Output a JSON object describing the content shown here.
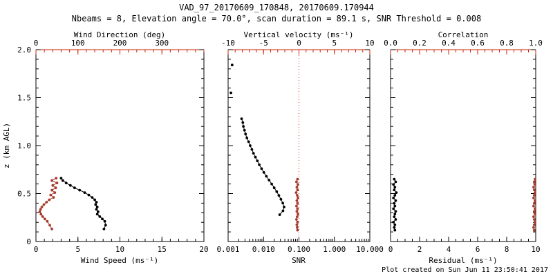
{
  "header": {
    "title": "VAD_97_20170609_170848, 20170609.170944",
    "subtitle": "Nbeams = 8, Elevation angle = 70.0°, scan duration = 89.1 s, SNR Threshold = 0.008"
  },
  "footer": {
    "created": "Plot created on Sun Jun 11 23:50:41 2017"
  },
  "colors": {
    "axis_black": "#000000",
    "axis_red": "#cc2200",
    "marker_red": "#a63a2c"
  },
  "chart_data": [
    {
      "type": "line",
      "name": "wind-profile-panel",
      "x_bottom": {
        "label": "Wind Speed (ms⁻¹)",
        "min": 0,
        "max": 20,
        "minor": 1,
        "ticks": [
          {
            "v": 0,
            "t": "0"
          },
          {
            "v": 5,
            "t": "5"
          },
          {
            "v": 10,
            "t": "10"
          },
          {
            "v": 15,
            "t": "15"
          },
          {
            "v": 20,
            "t": "20"
          }
        ]
      },
      "x_top": {
        "label": "Wind Direction (deg)",
        "min": 0,
        "max": 400,
        "minor": 20,
        "ticks": [
          {
            "v": 0,
            "t": "0"
          },
          {
            "v": 100,
            "t": "100"
          },
          {
            "v": 200,
            "t": "200"
          },
          {
            "v": 300,
            "t": "300"
          }
        ]
      },
      "y": {
        "label": "z (km AGL)",
        "min": 0,
        "max": 2.0,
        "minor": 0.1,
        "ticks": [
          {
            "v": 0,
            "t": "0"
          },
          {
            "v": 0.5,
            "t": "0.5"
          },
          {
            "v": 1.0,
            "t": "1.0"
          },
          {
            "v": 1.5,
            "t": "1.5"
          },
          {
            "v": 2.0,
            "t": "2.0"
          }
        ]
      },
      "series": [
        {
          "name": "wind_speed",
          "axis": "bottom",
          "color": "black",
          "line": true,
          "points": [
            [
              3.0,
              0.66
            ],
            [
              3.2,
              0.635
            ],
            [
              3.6,
              0.61
            ],
            [
              4.1,
              0.585
            ],
            [
              4.6,
              0.56
            ],
            [
              5.2,
              0.535
            ],
            [
              5.8,
              0.51
            ],
            [
              6.3,
              0.485
            ],
            [
              6.7,
              0.46
            ],
            [
              7.0,
              0.435
            ],
            [
              7.2,
              0.41
            ],
            [
              7.1,
              0.385
            ],
            [
              7.3,
              0.36
            ],
            [
              7.2,
              0.335
            ],
            [
              7.4,
              0.31
            ],
            [
              7.3,
              0.285
            ],
            [
              7.6,
              0.26
            ],
            [
              7.9,
              0.235
            ],
            [
              8.2,
              0.21
            ],
            [
              8.3,
              0.17
            ],
            [
              8.1,
              0.13
            ]
          ]
        },
        {
          "name": "wind_direction",
          "axis": "top",
          "color": "red",
          "line": true,
          "points": [
            [
              48,
              0.66
            ],
            [
              38,
              0.635
            ],
            [
              50,
              0.61
            ],
            [
              40,
              0.585
            ],
            [
              47,
              0.56
            ],
            [
              38,
              0.535
            ],
            [
              45,
              0.51
            ],
            [
              35,
              0.485
            ],
            [
              42,
              0.46
            ],
            [
              32,
              0.435
            ],
            [
              25,
              0.41
            ],
            [
              19,
              0.385
            ],
            [
              14,
              0.36
            ],
            [
              11,
              0.335
            ],
            [
              9,
              0.31
            ],
            [
              12,
              0.285
            ],
            [
              16,
              0.26
            ],
            [
              21,
              0.235
            ],
            [
              27,
              0.21
            ],
            [
              33,
              0.17
            ],
            [
              38,
              0.13
            ]
          ]
        }
      ]
    },
    {
      "type": "line",
      "name": "snr-vertical-velocity-panel",
      "x_bottom": {
        "label": "SNR",
        "min": 0.001,
        "max": 10,
        "log": true,
        "ticks": [
          {
            "v": 0.001,
            "t": "0.001"
          },
          {
            "v": 0.01,
            "t": "0.010"
          },
          {
            "v": 0.1,
            "t": "0.100"
          },
          {
            "v": 1,
            "t": "1.000"
          },
          {
            "v": 10,
            "t": "10.000"
          }
        ]
      },
      "x_top": {
        "label": "Vertical velocity (ms⁻¹)",
        "min": -10,
        "max": 10,
        "minor": 1,
        "ticks": [
          {
            "v": -10,
            "t": "-10"
          },
          {
            "v": -5,
            "t": "-5"
          },
          {
            "v": 0,
            "t": "0"
          },
          {
            "v": 5,
            "t": "5"
          },
          {
            "v": 10,
            "t": "10"
          }
        ]
      },
      "y": {
        "min": 0,
        "max": 2.0,
        "minor": 0.1,
        "ticks": [
          {
            "v": 0,
            "t": "0"
          },
          {
            "v": 0.5,
            "t": "0.5"
          },
          {
            "v": 1.0,
            "t": "1.0"
          },
          {
            "v": 1.5,
            "t": "1.5"
          },
          {
            "v": 2.0,
            "t": "2.0"
          }
        ]
      },
      "ref_line_top": 0,
      "series": [
        {
          "name": "snr_isolated",
          "axis": "bottom",
          "color": "black",
          "line": false,
          "points": [
            [
              0.0013,
              1.84
            ],
            [
              0.0012,
              1.55
            ]
          ]
        },
        {
          "name": "snr",
          "axis": "bottom",
          "color": "black",
          "line": true,
          "points": [
            [
              0.0024,
              1.28
            ],
            [
              0.0026,
              1.24
            ],
            [
              0.0027,
              1.2
            ],
            [
              0.0029,
              1.16
            ],
            [
              0.0031,
              1.12
            ],
            [
              0.0034,
              1.08
            ],
            [
              0.0038,
              1.04
            ],
            [
              0.0042,
              1.0
            ],
            [
              0.0047,
              0.96
            ],
            [
              0.0052,
              0.92
            ],
            [
              0.0059,
              0.88
            ],
            [
              0.0067,
              0.84
            ],
            [
              0.0076,
              0.8
            ],
            [
              0.0088,
              0.76
            ],
            [
              0.0102,
              0.72
            ],
            [
              0.012,
              0.68
            ],
            [
              0.0143,
              0.64
            ],
            [
              0.017,
              0.6
            ],
            [
              0.02,
              0.56
            ],
            [
              0.0235,
              0.52
            ],
            [
              0.027,
              0.48
            ],
            [
              0.031,
              0.44
            ],
            [
              0.035,
              0.4
            ],
            [
              0.038,
              0.36
            ],
            [
              0.0355,
              0.32
            ],
            [
              0.0285,
              0.28
            ]
          ]
        },
        {
          "name": "vertical_velocity",
          "axis": "top",
          "color": "red",
          "line": true,
          "points": [
            [
              -0.2,
              0.65
            ],
            [
              -0.35,
              0.622
            ],
            [
              -0.15,
              0.594
            ],
            [
              -0.3,
              0.566
            ],
            [
              -0.2,
              0.538
            ],
            [
              -0.4,
              0.51
            ],
            [
              -0.25,
              0.482
            ],
            [
              -0.15,
              0.454
            ],
            [
              -0.3,
              0.426
            ],
            [
              -0.2,
              0.398
            ],
            [
              -0.35,
              0.37
            ],
            [
              -0.2,
              0.342
            ],
            [
              -0.3,
              0.314
            ],
            [
              -0.15,
              0.286
            ],
            [
              -0.25,
              0.258
            ],
            [
              -0.35,
              0.23
            ],
            [
              -0.2,
              0.202
            ],
            [
              -0.3,
              0.174
            ],
            [
              -0.25,
              0.146
            ],
            [
              -0.2,
              0.118
            ]
          ]
        }
      ]
    },
    {
      "type": "line",
      "name": "residual-correlation-panel",
      "x_bottom": {
        "label": "Residual (ms⁻¹)",
        "min": 0,
        "max": 10,
        "minor": 0.5,
        "ticks": [
          {
            "v": 0,
            "t": "0"
          },
          {
            "v": 2,
            "t": "2"
          },
          {
            "v": 4,
            "t": "4"
          },
          {
            "v": 6,
            "t": "6"
          },
          {
            "v": 8,
            "t": "8"
          },
          {
            "v": 10,
            "t": "10"
          }
        ]
      },
      "x_top": {
        "label": "Correlation",
        "min": 0,
        "max": 1,
        "minor": 0.05,
        "ticks": [
          {
            "v": 0,
            "t": "0.0"
          },
          {
            "v": 0.2,
            "t": "0.2"
          },
          {
            "v": 0.4,
            "t": "0.4"
          },
          {
            "v": 0.6,
            "t": "0.6"
          },
          {
            "v": 0.8,
            "t": "0.8"
          },
          {
            "v": 1.0,
            "t": "1.0"
          }
        ]
      },
      "y": {
        "min": 0,
        "max": 2.0,
        "minor": 0.1,
        "ticks": [
          {
            "v": 0,
            "t": "0"
          },
          {
            "v": 0.5,
            "t": "0.5"
          },
          {
            "v": 1.0,
            "t": "1.0"
          },
          {
            "v": 1.5,
            "t": "1.5"
          },
          {
            "v": 2.0,
            "t": "2.0"
          }
        ]
      },
      "series": [
        {
          "name": "residual",
          "axis": "bottom",
          "color": "black",
          "line": true,
          "points": [
            [
              0.25,
              0.65
            ],
            [
              0.35,
              0.622
            ],
            [
              0.2,
              0.594
            ],
            [
              0.3,
              0.566
            ],
            [
              0.25,
              0.538
            ],
            [
              0.4,
              0.51
            ],
            [
              0.3,
              0.482
            ],
            [
              0.2,
              0.454
            ],
            [
              0.35,
              0.426
            ],
            [
              0.25,
              0.398
            ],
            [
              0.3,
              0.37
            ],
            [
              0.2,
              0.342
            ],
            [
              0.35,
              0.314
            ],
            [
              0.3,
              0.286
            ],
            [
              0.25,
              0.258
            ],
            [
              0.35,
              0.23
            ],
            [
              0.2,
              0.202
            ],
            [
              0.3,
              0.174
            ],
            [
              0.25,
              0.146
            ],
            [
              0.3,
              0.118
            ]
          ]
        },
        {
          "name": "correlation",
          "axis": "top",
          "color": "red",
          "line": true,
          "points": [
            [
              0.995,
              0.65
            ],
            [
              0.99,
              0.622
            ],
            [
              0.995,
              0.594
            ],
            [
              0.985,
              0.566
            ],
            [
              0.99,
              0.538
            ],
            [
              0.995,
              0.51
            ],
            [
              0.99,
              0.482
            ],
            [
              0.985,
              0.454
            ],
            [
              0.995,
              0.426
            ],
            [
              0.99,
              0.398
            ],
            [
              0.985,
              0.37
            ],
            [
              0.995,
              0.342
            ],
            [
              0.99,
              0.314
            ],
            [
              0.995,
              0.286
            ],
            [
              0.985,
              0.258
            ],
            [
              0.99,
              0.23
            ],
            [
              0.995,
              0.202
            ],
            [
              0.99,
              0.174
            ],
            [
              0.985,
              0.146
            ],
            [
              0.99,
              0.118
            ]
          ]
        }
      ]
    }
  ]
}
